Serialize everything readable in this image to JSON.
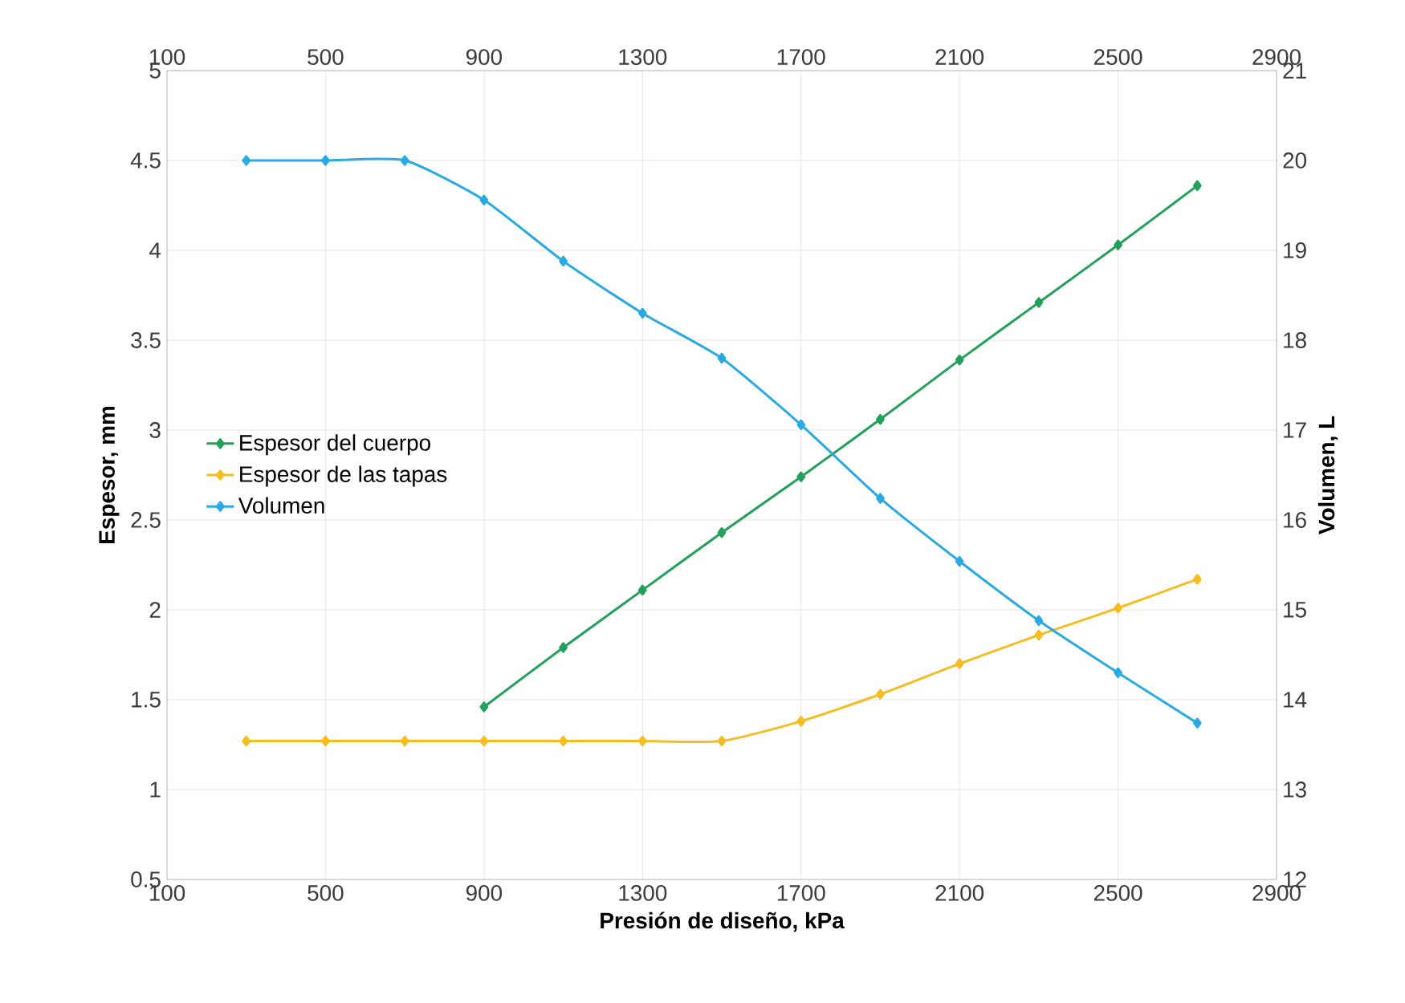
{
  "chart_data": {
    "type": "line",
    "xlabel": "Presión de diseño, kPa",
    "ylabel": "Espesor, mm",
    "y2label": "Volumen, L",
    "x": [
      300,
      500,
      700,
      900,
      1100,
      1300,
      1500,
      1700,
      1900,
      2100,
      2300,
      2500,
      2700
    ],
    "series": [
      {
        "name": "Espesor del cuerpo",
        "color": "#21a05a",
        "values": [
          null,
          null,
          null,
          1.46,
          1.79,
          2.11,
          2.43,
          2.74,
          3.06,
          3.39,
          3.71,
          4.03,
          4.36
        ]
      },
      {
        "name": "Espesor de las tapas",
        "color": "#f5bd1f",
        "values": [
          1.27,
          1.27,
          1.27,
          1.27,
          1.27,
          1.27,
          1.27,
          1.38,
          1.53,
          1.7,
          1.86,
          2.01,
          2.17
        ]
      },
      {
        "name": "Volumen",
        "color": "#2aaae2",
        "axis": "y2",
        "values": [
          20.0,
          20.0,
          20.0,
          19.56,
          18.88,
          18.3,
          17.8,
          17.06,
          16.24,
          15.54,
          14.88,
          14.3,
          13.74
        ]
      }
    ],
    "xlim": [
      100,
      2900
    ],
    "xticks": [
      100,
      500,
      900,
      1300,
      1700,
      2100,
      2500,
      2900
    ],
    "x2lim": [
      100,
      2900
    ],
    "x2ticks": [
      100,
      500,
      900,
      1300,
      1700,
      2100,
      2500,
      2900
    ],
    "ylim": [
      0.5,
      5
    ],
    "yticks": [
      0.5,
      1,
      1.5,
      2,
      2.5,
      3,
      3.5,
      4,
      4.5,
      5
    ],
    "y2lim": [
      12,
      21
    ],
    "y2ticks": [
      12,
      13,
      14,
      15,
      16,
      17,
      18,
      19,
      20,
      21
    ],
    "grid": true,
    "legend": "left",
    "marker": "diamond",
    "line_style": "solid"
  }
}
